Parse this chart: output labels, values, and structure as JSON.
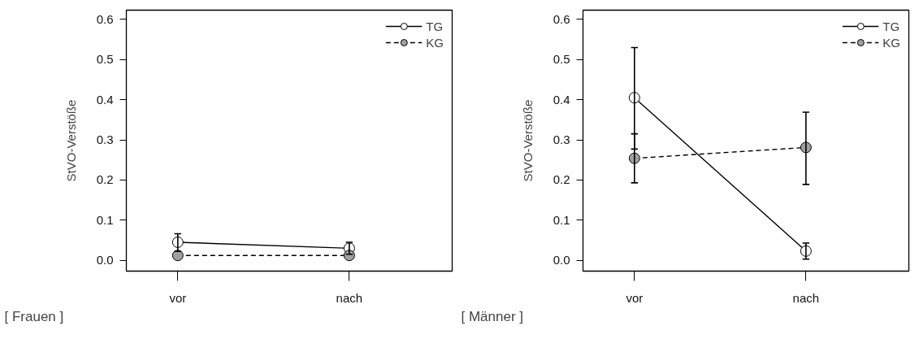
{
  "chart_data": [
    {
      "type": "line",
      "categories": [
        "vor",
        "nach"
      ],
      "ylabel": "StVO-Verstöße",
      "annotations": [
        "[ Frauen ]"
      ],
      "ylim": [
        -0.027,
        0.623
      ],
      "yticks": [
        {
          "value": 0.0,
          "label": "0.0"
        },
        {
          "value": 0.1,
          "label": "0.1"
        },
        {
          "value": 0.2,
          "label": "0.2"
        },
        {
          "value": 0.3,
          "label": "0.3"
        },
        {
          "value": 0.4,
          "label": "0.4"
        },
        {
          "value": 0.5,
          "label": "0.5"
        },
        {
          "value": 0.6,
          "label": "0.6"
        }
      ],
      "grid": false,
      "legend": "top right",
      "marker": "circle",
      "series": [
        {
          "name": "TG",
          "color": "#ffffff",
          "line_style": "solid",
          "values": [
            0.045,
            0.03
          ],
          "errors": [
            [
              0.022,
              0.066
            ],
            [
              0.015,
              0.045
            ]
          ]
        },
        {
          "name": "KG",
          "color": "#a0a0a0",
          "line_style": "dashed",
          "values": [
            0.012,
            0.012
          ],
          "errors": [
            null,
            null
          ]
        }
      ]
    },
    {
      "type": "line",
      "categories": [
        "vor",
        "nach"
      ],
      "ylabel": "StVO-Verstöße",
      "annotations": [
        "[ Männer ]"
      ],
      "ylim": [
        -0.027,
        0.623
      ],
      "yticks": [
        {
          "value": 0.0,
          "label": "0.0"
        },
        {
          "value": 0.1,
          "label": "0.1"
        },
        {
          "value": 0.2,
          "label": "0.2"
        },
        {
          "value": 0.3,
          "label": "0.3"
        },
        {
          "value": 0.4,
          "label": "0.4"
        },
        {
          "value": 0.5,
          "label": "0.5"
        },
        {
          "value": 0.6,
          "label": "0.6"
        }
      ],
      "grid": false,
      "legend": "top right",
      "marker": "circle",
      "series": [
        {
          "name": "TG",
          "color": "#ffffff",
          "line_style": "solid",
          "values": [
            0.405,
            0.023
          ],
          "errors": [
            [
              0.277,
              0.53
            ],
            [
              0.003,
              0.043
            ]
          ]
        },
        {
          "name": "KG",
          "color": "#a0a0a0",
          "line_style": "dashed",
          "values": [
            0.254,
            0.281
          ],
          "errors": [
            [
              0.193,
              0.315
            ],
            [
              0.189,
              0.369
            ]
          ]
        }
      ]
    }
  ]
}
